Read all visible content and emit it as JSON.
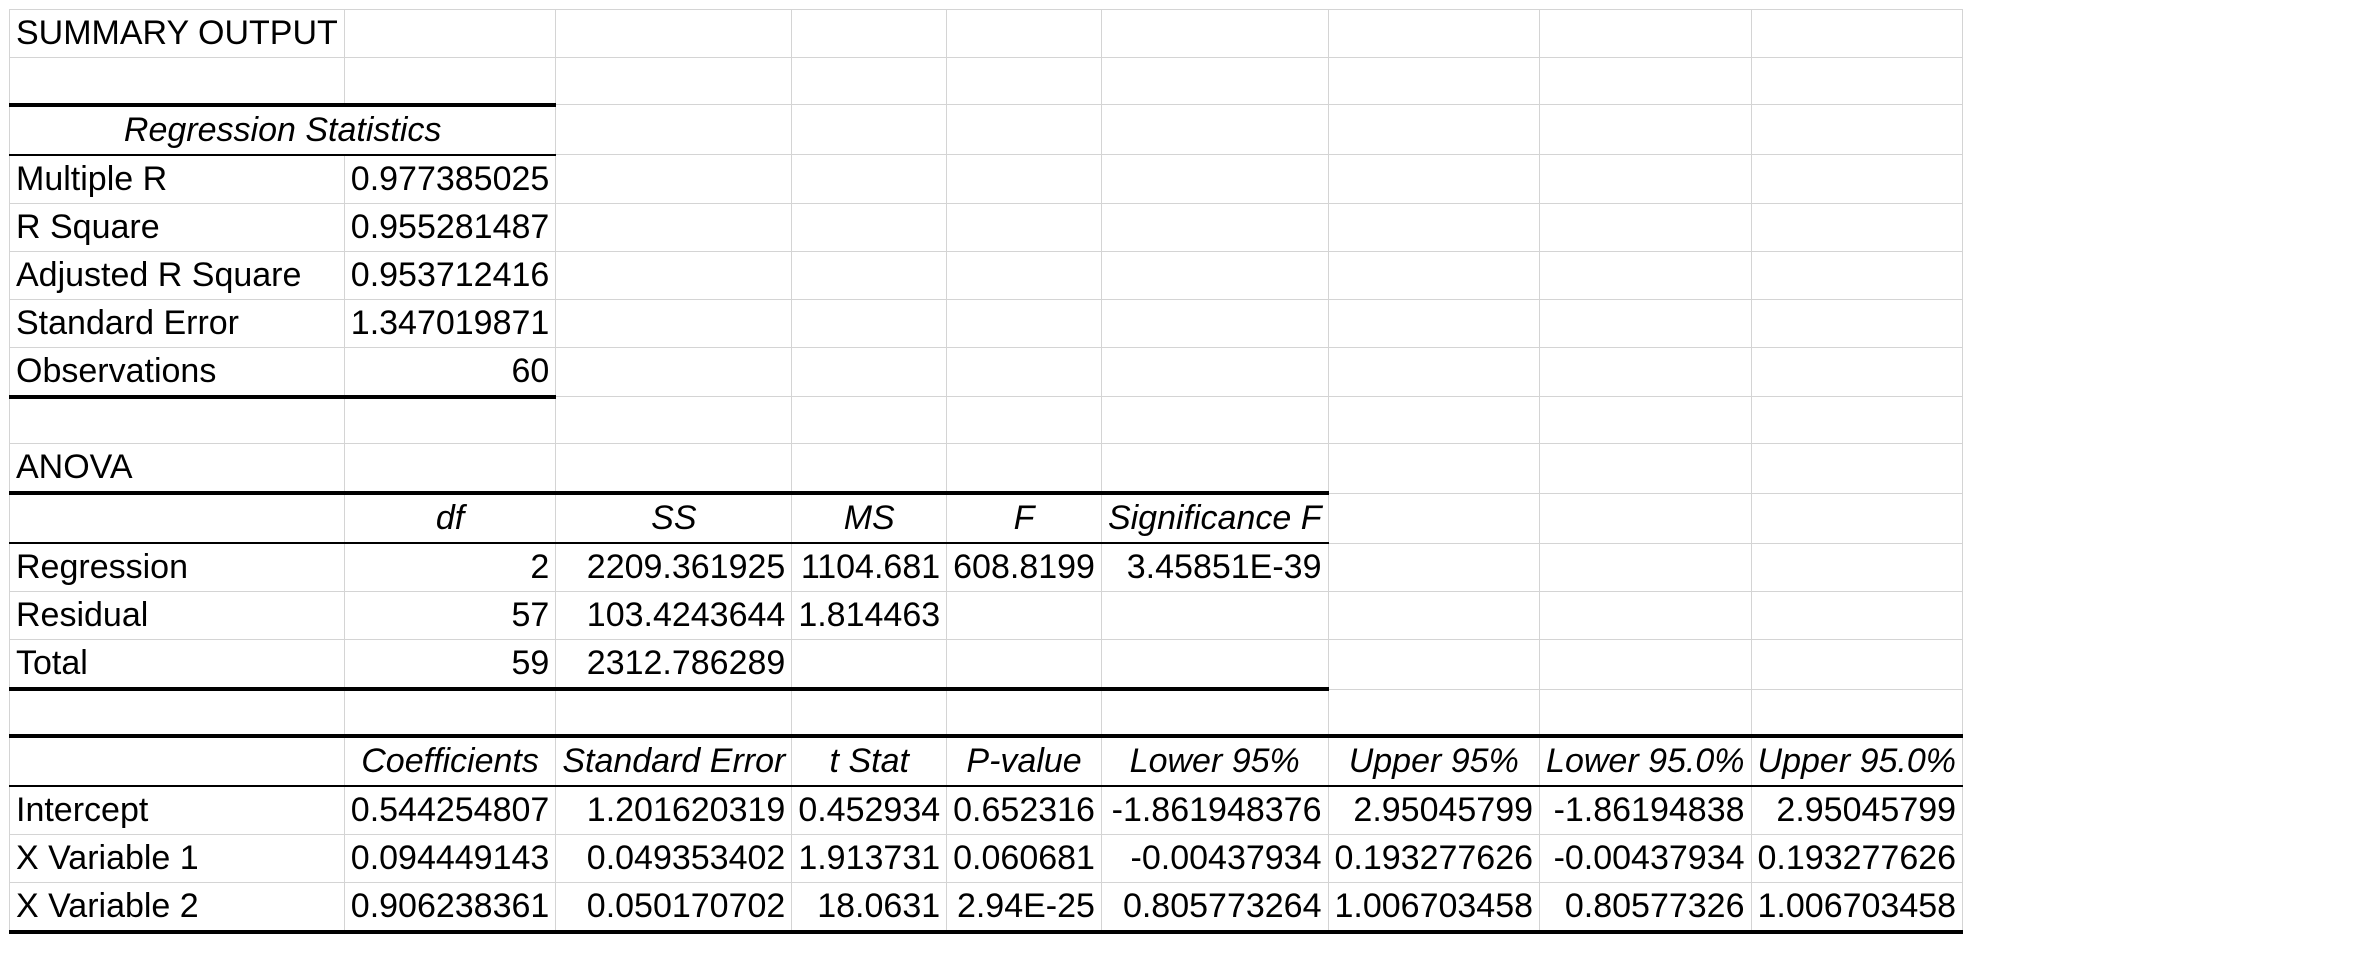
{
  "title": "SUMMARY OUTPUT",
  "regression_statistics": {
    "header": "Regression Statistics",
    "rows": [
      {
        "label": "Multiple R",
        "value": "0.977385025"
      },
      {
        "label": "R Square",
        "value": "0.955281487"
      },
      {
        "label": "Adjusted R Square",
        "value": "0.953712416"
      },
      {
        "label": "Standard Error",
        "value": "1.347019871"
      },
      {
        "label": "Observations",
        "value": "60"
      }
    ]
  },
  "anova": {
    "label": "ANOVA",
    "headers": [
      "df",
      "SS",
      "MS",
      "F",
      "Significance F"
    ],
    "rows": [
      {
        "label": "Regression",
        "df": "2",
        "ss": "2209.361925",
        "ms": "1104.681",
        "f": "608.8199",
        "sig": "3.45851E-39"
      },
      {
        "label": "Residual",
        "df": "57",
        "ss": "103.4243644",
        "ms": "1.814463",
        "f": "",
        "sig": ""
      },
      {
        "label": "Total",
        "df": "59",
        "ss": "2312.786289",
        "ms": "",
        "f": "",
        "sig": ""
      }
    ]
  },
  "coefficients": {
    "headers": [
      "Coefficients",
      "Standard Error",
      "t Stat",
      "P-value",
      "Lower 95%",
      "Upper 95%",
      "Lower 95.0%",
      "Upper 95.0%"
    ],
    "rows": [
      {
        "label": "Intercept",
        "values": [
          "0.544254807",
          "1.201620319",
          "0.452934",
          "0.652316",
          "-1.861948376",
          "2.95045799",
          "-1.86194838",
          "2.95045799"
        ]
      },
      {
        "label": "X Variable 1",
        "values": [
          "0.094449143",
          "0.049353402",
          "1.913731",
          "0.060681",
          "-0.00437934",
          "0.193277626",
          "-0.00437934",
          "0.193277626"
        ]
      },
      {
        "label": "X Variable 2",
        "values": [
          "0.906238361",
          "0.050170702",
          "18.0631",
          "2.94E-25",
          "0.805773264",
          "1.006703458",
          "0.80577326",
          "1.006703458"
        ]
      }
    ]
  }
}
